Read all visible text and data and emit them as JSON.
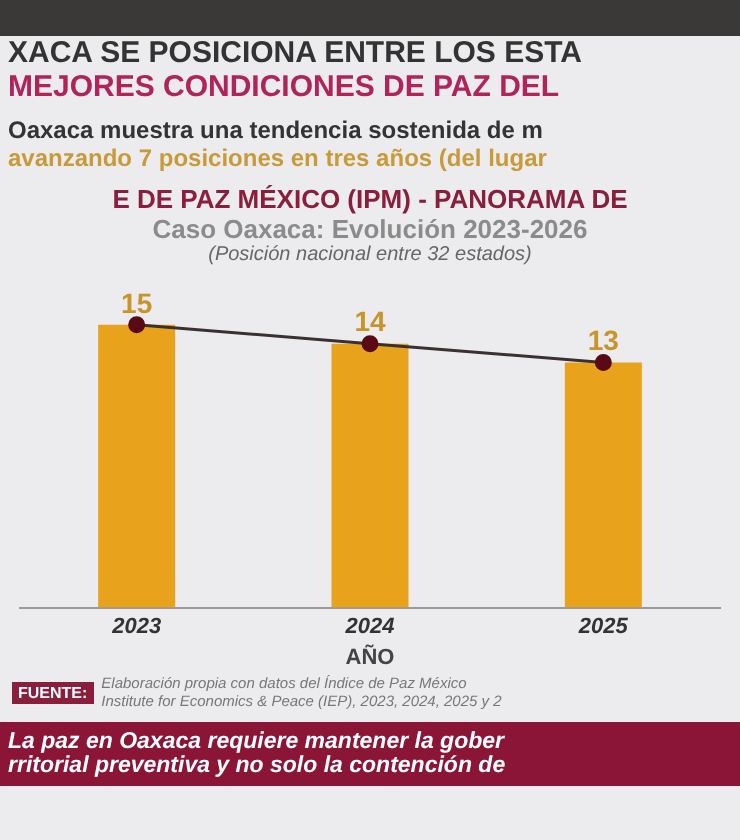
{
  "chart_data": {
    "type": "bar",
    "title": "E DE PAZ MÉXICO (IPM) - PANORAMA DE",
    "subtitle": "Caso Oaxaca: Evolución 2023-2026",
    "xlabel": "AÑO",
    "categories": [
      "2023",
      "2024",
      "2025"
    ],
    "series": [
      {
        "color": "#e8a21c",
        "values": [
          15,
          14,
          13
        ],
        "value_labels": [
          "15",
          "14",
          "13"
        ]
      },
      {
        "type": "line",
        "color": "#5a0a14",
        "values": [
          15,
          14,
          13
        ]
      }
    ],
    "tick_labels": "x",
    "grid": false,
    "legend": false,
    "marker": "circle",
    "line_style": "solid",
    "annotations": [
      "XACA SE POSICIONA ENTRE LOS ESTA",
      "MEJORES CONDICIONES DE PAZ DEL",
      "Oaxaca muestra una tendencia sostenida de m",
      "avanzando 7 posiciones en tres años (del lugar",
      "(Posición nacional entre 32 estados)",
      "FUENTE:",
      "Elaboración propia con datos del Índice de Paz México",
      "Institute for Economics & Peace (IEP), 2023, 2024, 2025 y 2",
      "La paz en Oaxaca requiere mantener la gober",
      "rritorial preventiva y no solo la contención de"
    ]
  }
}
